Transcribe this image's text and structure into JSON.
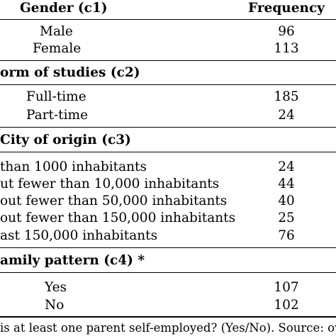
{
  "table": {
    "header": {
      "label": "Gender (c1)",
      "value": "Frequency"
    },
    "sections": [
      {
        "title": "",
        "rows": [
          {
            "label": "Male",
            "value": "96"
          },
          {
            "label": "Female",
            "value": "113"
          }
        ]
      },
      {
        "title": "orm of studies (c2)",
        "rows": [
          {
            "label": "Full-time",
            "value": "185"
          },
          {
            "label": "Part-time",
            "value": "24"
          }
        ]
      },
      {
        "title": "City of origin (c3)",
        "rows": [
          {
            "label": "than 1000 inhabitants",
            "value": "24"
          },
          {
            "label": "ut fewer than 10,000 inhabitants",
            "value": "44"
          },
          {
            "label": "out fewer than 50,000 inhabitants",
            "value": "40"
          },
          {
            "label": "out fewer than 150,000 inhabitants",
            "value": "25"
          },
          {
            "label": "ast 150,000 inhabitants",
            "value": "76"
          }
        ]
      },
      {
        "title": "amily pattern (c4) *",
        "rows": [
          {
            "label": "Yes",
            "value": "107"
          },
          {
            "label": "No",
            "value": "102"
          }
        ]
      }
    ],
    "footnote": "is at least one parent self-employed? (Yes/No). Source: own"
  }
}
